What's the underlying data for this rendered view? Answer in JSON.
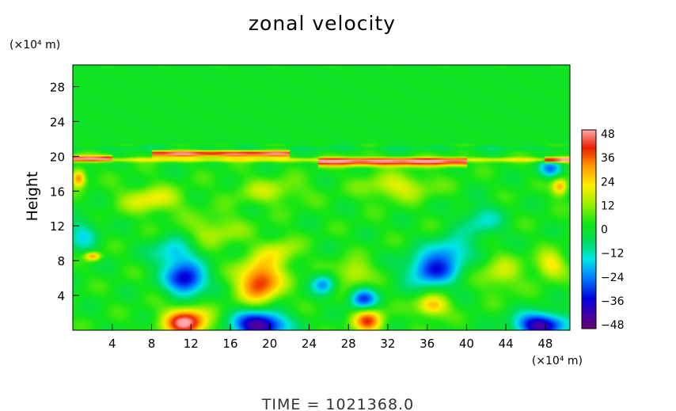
{
  "chart_data": {
    "type": "heatmap",
    "title": "zonal velocity",
    "ylabel": "Height",
    "xlabel": "",
    "x_unit": "(×10⁴ m)",
    "y_unit": "(×10⁴ m)",
    "xlim": [
      0,
      50.5
    ],
    "ylim": [
      0,
      30.5
    ],
    "x_ticks": [
      4,
      8,
      12,
      16,
      20,
      24,
      28,
      32,
      36,
      40,
      44,
      48
    ],
    "y_ticks": [
      4,
      8,
      12,
      16,
      20,
      24,
      28
    ],
    "colorbar": {
      "ticks": [
        48,
        36,
        24,
        12,
        0,
        -12,
        -24,
        -36,
        -48
      ],
      "range": [
        -48,
        48
      ]
    },
    "features": [
      {
        "x": 11.5,
        "y": 0.9,
        "value": 46,
        "sx": 2.2,
        "sy": 1.6
      },
      {
        "x": 19.0,
        "y": 0.6,
        "value": -48,
        "sx": 2.6,
        "sy": 1.6
      },
      {
        "x": 30.0,
        "y": 1.1,
        "value": 34,
        "sx": 1.5,
        "sy": 1.4
      },
      {
        "x": 47.5,
        "y": 0.6,
        "value": -44,
        "sx": 2.6,
        "sy": 1.4
      },
      {
        "x": 36.5,
        "y": 2.8,
        "value": 26,
        "sx": 1.6,
        "sy": 1.2
      },
      {
        "x": 11.5,
        "y": 5.8,
        "value": -38,
        "sx": 2.0,
        "sy": 1.8
      },
      {
        "x": 10.2,
        "y": 8.8,
        "value": -20,
        "sx": 2.2,
        "sy": 1.8
      },
      {
        "x": 19.0,
        "y": 5.6,
        "value": 38,
        "sx": 2.2,
        "sy": 2.4
      },
      {
        "x": 21.0,
        "y": 9.0,
        "value": 14,
        "sx": 2.0,
        "sy": 1.6
      },
      {
        "x": 25.5,
        "y": 5.3,
        "value": -22,
        "sx": 1.2,
        "sy": 1.2
      },
      {
        "x": 29.5,
        "y": 3.6,
        "value": -30,
        "sx": 1.4,
        "sy": 1.3
      },
      {
        "x": 28.5,
        "y": 6.5,
        "value": 16,
        "sx": 1.8,
        "sy": 1.6
      },
      {
        "x": 36.5,
        "y": 7.0,
        "value": -32,
        "sx": 2.6,
        "sy": 2.0
      },
      {
        "x": 38.5,
        "y": 9.2,
        "value": -18,
        "sx": 2.0,
        "sy": 1.6
      },
      {
        "x": 43.5,
        "y": 6.5,
        "value": 14,
        "sx": 2.0,
        "sy": 2.0
      },
      {
        "x": 48.5,
        "y": 7.5,
        "value": 20,
        "sx": 1.5,
        "sy": 1.5
      },
      {
        "x": 2.0,
        "y": 8.5,
        "value": 30,
        "sx": 0.8,
        "sy": 0.5
      },
      {
        "x": 1.0,
        "y": 11.0,
        "value": -14,
        "sx": 1.6,
        "sy": 2.2
      },
      {
        "x": 14.5,
        "y": 11.5,
        "value": 12,
        "sx": 3.0,
        "sy": 1.8
      },
      {
        "x": 41.5,
        "y": 12.5,
        "value": -14,
        "sx": 2.2,
        "sy": 2.0
      },
      {
        "x": 0.6,
        "y": 17.5,
        "value": 32,
        "sx": 0.7,
        "sy": 1.0
      },
      {
        "x": 8.0,
        "y": 15.0,
        "value": 18,
        "sx": 3.0,
        "sy": 1.5
      },
      {
        "x": 33.0,
        "y": 16.5,
        "value": 16,
        "sx": 3.5,
        "sy": 1.5
      },
      {
        "x": 20.0,
        "y": 16.0,
        "value": 12,
        "sx": 3.5,
        "sy": 1.5
      },
      {
        "x": 48.5,
        "y": 18.5,
        "value": -24,
        "sx": 1.2,
        "sy": 1.0
      },
      {
        "x": 49.5,
        "y": 16.5,
        "value": 28,
        "sx": 0.8,
        "sy": 1.0
      }
    ],
    "bands": [
      {
        "y": 20.3,
        "thickness": 0.35,
        "x_from": 8,
        "x_to": 22,
        "value": 44
      },
      {
        "y": 19.3,
        "thickness": 0.45,
        "x_from": 25,
        "x_to": 40,
        "value": 38
      },
      {
        "y": 19.6,
        "thickness": 0.25,
        "x_from": 0,
        "x_to": 50.5,
        "value": 18
      },
      {
        "y": 20.9,
        "thickness": 0.25,
        "x_from": 0,
        "x_to": 50.5,
        "value": -6
      },
      {
        "y": 19.8,
        "thickness": 0.3,
        "x_from": 0,
        "x_to": 4,
        "value": 36
      },
      {
        "y": 19.6,
        "thickness": 0.3,
        "x_from": 48,
        "x_to": 50.5,
        "value": 36
      }
    ]
  },
  "footer": {
    "time_label": "TIME  =  1021368.0"
  }
}
